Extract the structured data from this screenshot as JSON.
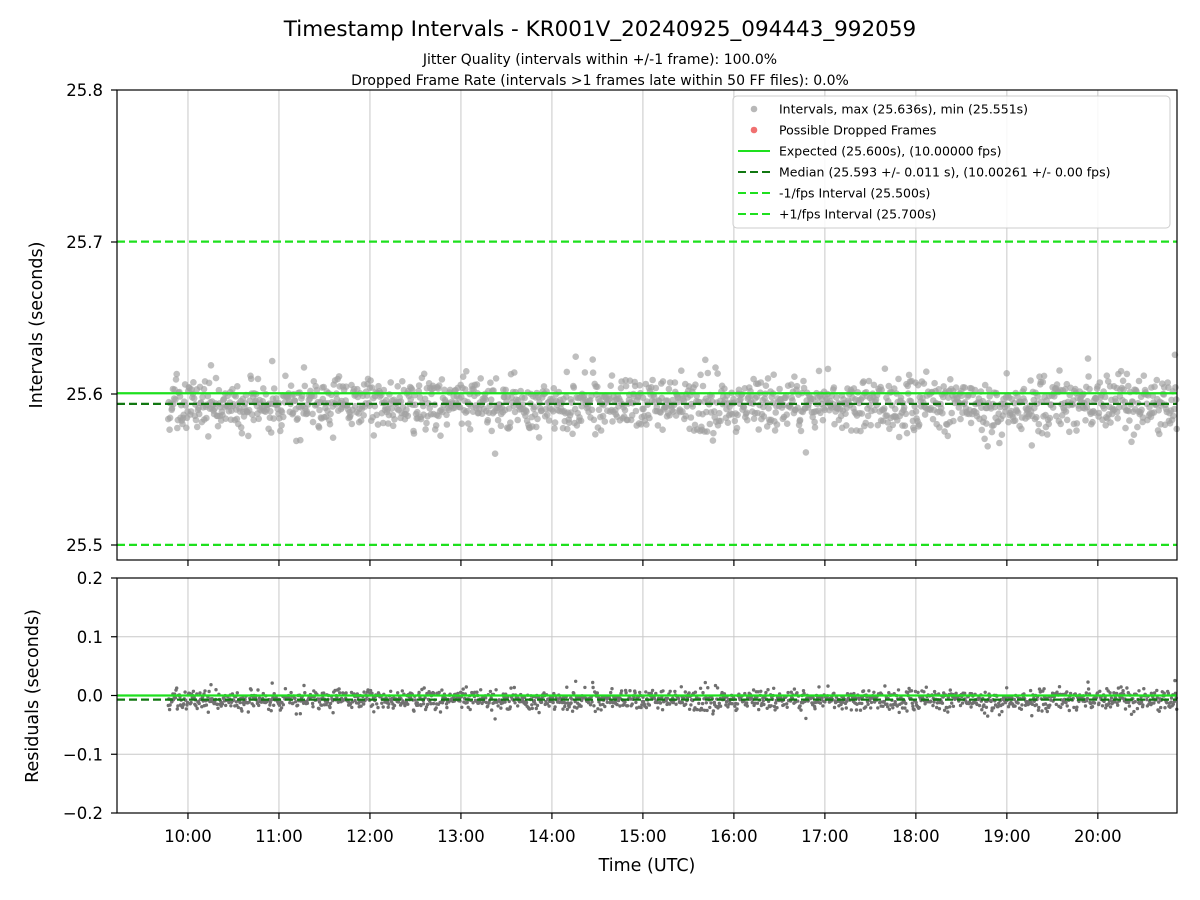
{
  "chart_data": [
    {
      "type": "scatter",
      "panel": "intervals",
      "title": "Timestamp Intervals - KR001V_20240925_094443_992059",
      "subtitles": [
        "Jitter Quality (intervals within +/-1 frame): 100.0%",
        "Dropped Frame Rate (intervals >1 frames late within 50 FF files): 0.0%"
      ],
      "ylabel": "Intervals (seconds)",
      "ylim": [
        25.49,
        25.8
      ],
      "xlim_hours": [
        9.22,
        20.87
      ],
      "yticks": [
        "25.5",
        "25.6",
        "25.7",
        "25.8"
      ],
      "grid": "x",
      "legend_position": "top-right",
      "legend": [
        {
          "label": "Intervals, max (25.636s), min (25.551s)",
          "kind": "marker",
          "color": "#a0a0a0"
        },
        {
          "label": "Possible Dropped Frames",
          "kind": "marker",
          "color": "#f07070"
        },
        {
          "label": "Expected (25.600s), (10.00000 fps)",
          "kind": "solid",
          "color": "#1ee01e"
        },
        {
          "label": "Median (25.593 +/- 0.011 s), (10.00261 +/- 0.00 fps)",
          "kind": "dashed",
          "color": "#117711"
        },
        {
          "label": "-1/fps Interval (25.500s)",
          "kind": "dashed",
          "color": "#1ee01e"
        },
        {
          "label": "+1/fps Interval (25.700s)",
          "kind": "dashed",
          "color": "#1ee01e"
        }
      ],
      "series": [
        {
          "name": "Intervals",
          "color": "#a0a0a0",
          "time_range": [
            "09:47",
            "20:52"
          ],
          "y_center": 25.593,
          "y_spread": 0.011,
          "y_max": 25.636,
          "y_min": 25.551
        },
        {
          "name": "Possible Dropped Frames",
          "color": "#f07070",
          "count": 0
        }
      ],
      "reference_lines": [
        {
          "name": "Expected",
          "y": 25.6,
          "style": "solid",
          "color": "#1ee01e"
        },
        {
          "name": "Median",
          "y": 25.593,
          "style": "dashed",
          "color": "#117711"
        },
        {
          "name": "-1/fps Interval",
          "y": 25.5,
          "style": "dashed",
          "color": "#1ee01e"
        },
        {
          "name": "+1/fps Interval",
          "y": 25.7,
          "style": "dashed",
          "color": "#1ee01e"
        }
      ]
    },
    {
      "type": "scatter",
      "panel": "residuals",
      "xlabel": "Time (UTC)",
      "ylabel": "Residuals (seconds)",
      "ylim": [
        -0.2,
        0.2
      ],
      "xlim_hours": [
        9.22,
        20.87
      ],
      "yticks": [
        "0.2",
        "0.1",
        "0.0",
        "−0.1",
        "−0.2"
      ],
      "ytick_values": [
        0.2,
        0.1,
        0.0,
        -0.1,
        -0.2
      ],
      "xticks": [
        "10:00",
        "11:00",
        "12:00",
        "13:00",
        "14:00",
        "15:00",
        "16:00",
        "17:00",
        "18:00",
        "19:00",
        "20:00"
      ],
      "xtick_hours": [
        10,
        11,
        12,
        13,
        14,
        15,
        16,
        17,
        18,
        19,
        20
      ],
      "grid": "both",
      "series": [
        {
          "name": "Residuals",
          "color": "#707070",
          "time_range": [
            "09:47",
            "20:52"
          ],
          "y_center": -0.007,
          "y_spread": 0.011
        }
      ],
      "reference_lines": [
        {
          "name": "Zero",
          "y": 0.0,
          "style": "solid",
          "color": "#1ee01e"
        },
        {
          "name": "Median offset",
          "y": -0.007,
          "style": "dashed",
          "color": "#117711"
        }
      ]
    }
  ]
}
